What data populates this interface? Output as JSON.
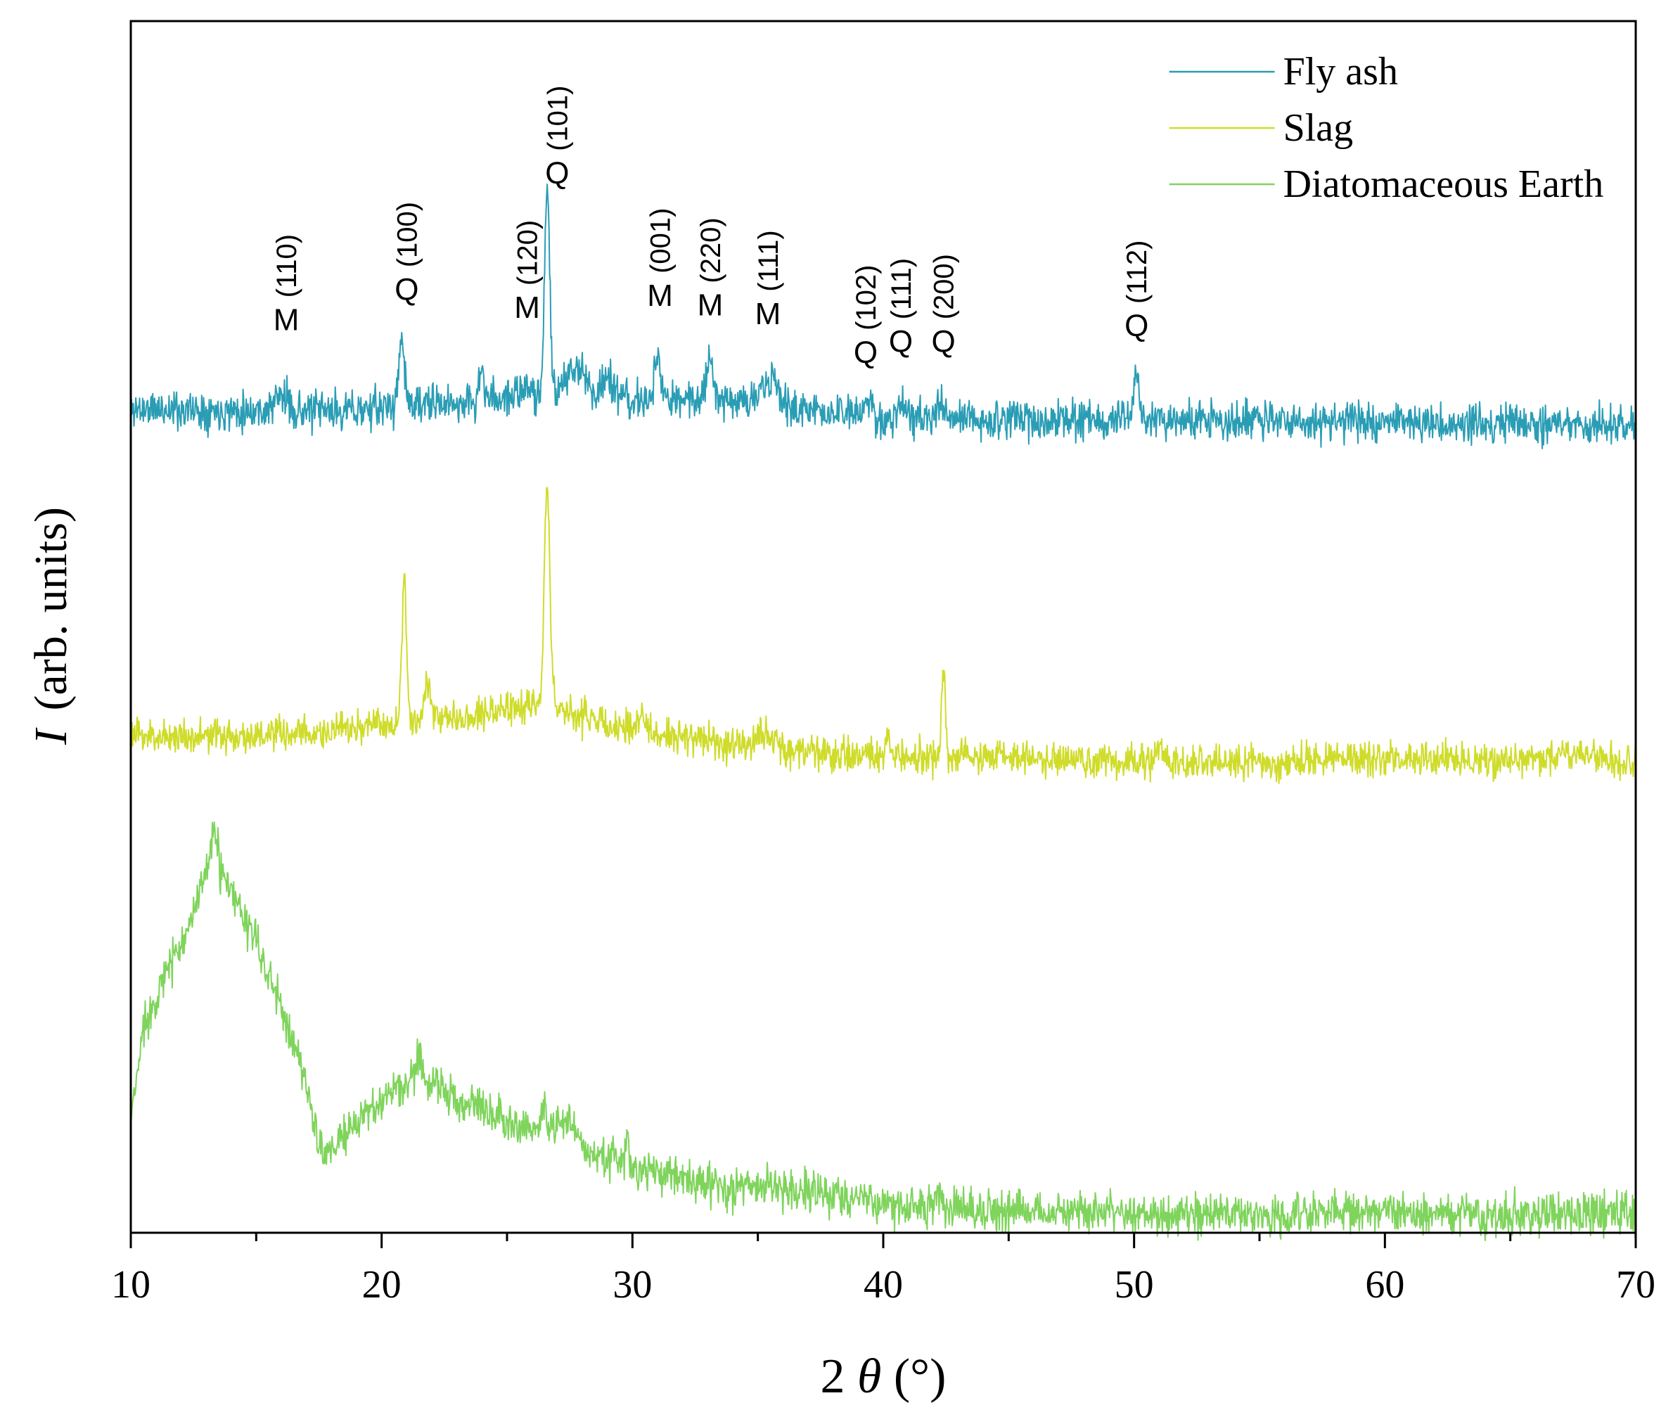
{
  "chart_data": {
    "type": "line",
    "title": "",
    "xlabel": "2θ(°)",
    "ylabel": "I (arb. units)",
    "ylabel_symbol": "I",
    "ylabel_text": "(arb. units)",
    "xlabel_prefix": "2",
    "xlabel_symbol": "θ",
    "xlabel_unit": "(°)",
    "xlim": [
      10,
      70
    ],
    "ylim": [
      0,
      100
    ],
    "xticks": [
      10,
      20,
      30,
      40,
      50,
      60,
      70
    ],
    "xtick_labels": [
      "10",
      "20",
      "30",
      "40",
      "50",
      "60",
      "70"
    ],
    "grid": false,
    "yticks_visible": false,
    "legend_position": "top-right",
    "series": [
      {
        "name": "Fly ash",
        "color": "#2a9db5",
        "noise": 1.6,
        "seed": 11,
        "baseline": [
          [
            10,
            68.0
          ],
          [
            18,
            67.8
          ],
          [
            24,
            68.6
          ],
          [
            26,
            69.5
          ],
          [
            28,
            69.4
          ],
          [
            30,
            68.6
          ],
          [
            33,
            68.9
          ],
          [
            35,
            68.6
          ],
          [
            37,
            67.9
          ],
          [
            40,
            67.2
          ],
          [
            50,
            67.0
          ],
          [
            60,
            67.0
          ],
          [
            70,
            66.6
          ]
        ],
        "peaks": [
          {
            "x": 16.0,
            "h": 1.2,
            "w": 0.25
          },
          {
            "x": 20.8,
            "h": 5.5,
            "w": 0.12
          },
          {
            "x": 24.0,
            "h": 2.5,
            "w": 0.1
          },
          {
            "x": 26.6,
            "h": 16.8,
            "w": 0.1
          },
          {
            "x": 27.8,
            "h": 2.2,
            "w": 0.3
          },
          {
            "x": 29.0,
            "h": 1.8,
            "w": 0.2
          },
          {
            "x": 31.0,
            "h": 3.5,
            "w": 0.12
          },
          {
            "x": 33.1,
            "h": 3.2,
            "w": 0.15
          },
          {
            "x": 35.5,
            "h": 1.8,
            "w": 0.3
          },
          {
            "x": 39.4,
            "h": 1.2,
            "w": 0.15
          },
          {
            "x": 40.7,
            "h": 1.5,
            "w": 0.12
          },
          {
            "x": 42.3,
            "h": 1.2,
            "w": 0.12
          },
          {
            "x": 50.1,
            "h": 4.0,
            "w": 0.1
          }
        ]
      },
      {
        "name": "Slag",
        "color": "#cfdc2a",
        "noise": 1.4,
        "seed": 23,
        "baseline": [
          [
            10,
            41.0
          ],
          [
            15,
            41.0
          ],
          [
            18,
            41.3
          ],
          [
            20,
            42.0
          ],
          [
            22,
            42.4
          ],
          [
            25,
            43.2
          ],
          [
            26.5,
            43.8
          ],
          [
            28,
            42.6
          ],
          [
            30,
            41.5
          ],
          [
            33,
            40.6
          ],
          [
            36,
            39.8
          ],
          [
            40,
            39.2
          ],
          [
            45,
            39.2
          ],
          [
            50,
            38.8
          ],
          [
            55,
            38.8
          ],
          [
            60,
            39.2
          ],
          [
            65,
            38.9
          ],
          [
            68,
            39.6
          ],
          [
            70,
            38.6
          ]
        ],
        "peaks": [
          {
            "x": 20.9,
            "h": 12.0,
            "w": 0.09
          },
          {
            "x": 21.8,
            "h": 3.0,
            "w": 0.15
          },
          {
            "x": 26.6,
            "h": 18.2,
            "w": 0.11
          },
          {
            "x": 30.4,
            "h": 1.8,
            "w": 0.1
          },
          {
            "x": 35.4,
            "h": 1.5,
            "w": 0.3
          },
          {
            "x": 40.2,
            "h": 1.6,
            "w": 0.1
          },
          {
            "x": 42.4,
            "h": 7.4,
            "w": 0.07
          },
          {
            "x": 51.0,
            "h": 1.4,
            "w": 0.12
          }
        ]
      },
      {
        "name": "Diatomaceous Earth",
        "color": "#7fd45c",
        "noise": 1.7,
        "seed": 37,
        "baseline": [
          [
            10,
            9.0
          ],
          [
            10.5,
            17.0
          ],
          [
            11,
            19.5
          ],
          [
            12,
            24.0
          ],
          [
            13,
            29.0
          ],
          [
            13.5,
            29.8
          ],
          [
            14,
            28.0
          ],
          [
            15,
            24.0
          ],
          [
            16,
            18.5
          ],
          [
            17,
            12.5
          ],
          [
            17.5,
            7.0
          ],
          [
            18,
            6.8
          ],
          [
            19,
            9.0
          ],
          [
            20,
            11.0
          ],
          [
            21,
            12.3
          ],
          [
            22,
            12.4
          ],
          [
            23,
            11.0
          ],
          [
            24,
            10.4
          ],
          [
            25,
            9.5
          ],
          [
            26,
            8.5
          ],
          [
            27,
            8.6
          ],
          [
            27.5,
            9.3
          ],
          [
            28,
            7.2
          ],
          [
            29,
            6.3
          ],
          [
            30,
            5.2
          ],
          [
            32,
            4.6
          ],
          [
            34,
            3.6
          ],
          [
            35.5,
            3.9
          ],
          [
            38,
            2.9
          ],
          [
            40,
            2.4
          ],
          [
            45,
            1.8
          ],
          [
            50,
            1.6
          ],
          [
            55,
            1.4
          ],
          [
            60,
            1.7
          ],
          [
            65,
            1.4
          ],
          [
            70,
            1.6
          ]
        ],
        "peaks": [
          {
            "x": 13.3,
            "h": 3.5,
            "w": 0.15
          },
          {
            "x": 21.5,
            "h": 2.5,
            "w": 0.12
          },
          {
            "x": 26.5,
            "h": 2.0,
            "w": 0.1
          },
          {
            "x": 29.8,
            "h": 3.0,
            "w": 0.06
          },
          {
            "x": 42.2,
            "h": 1.2,
            "w": 0.1
          }
        ]
      }
    ],
    "annotations": [
      {
        "phase": "M",
        "hkl": "(110)",
        "x": 16.2,
        "y": 74.5
      },
      {
        "phase": "Q",
        "hkl": "(100)",
        "x": 21.0,
        "y": 77.0
      },
      {
        "phase": "M",
        "hkl": "(120)",
        "x": 25.8,
        "y": 75.5
      },
      {
        "phase": "Q",
        "hkl": "(101)",
        "x": 27.0,
        "y": 86.6
      },
      {
        "phase": "M",
        "hkl": "(001)",
        "x": 31.1,
        "y": 76.5
      },
      {
        "phase": "M",
        "hkl": "(220)",
        "x": 33.1,
        "y": 75.7
      },
      {
        "phase": "M",
        "hkl": "(111)",
        "x": 35.4,
        "y": 75.0
      },
      {
        "phase": "Q",
        "hkl": "(102)",
        "x": 39.3,
        "y": 71.8
      },
      {
        "phase": "Q",
        "hkl": "(111)",
        "x": 40.7,
        "y": 72.7
      },
      {
        "phase": "Q",
        "hkl": "(200)",
        "x": 42.4,
        "y": 72.7
      },
      {
        "phase": "Q",
        "hkl": "(112)",
        "x": 50.1,
        "y": 74.0
      }
    ]
  }
}
